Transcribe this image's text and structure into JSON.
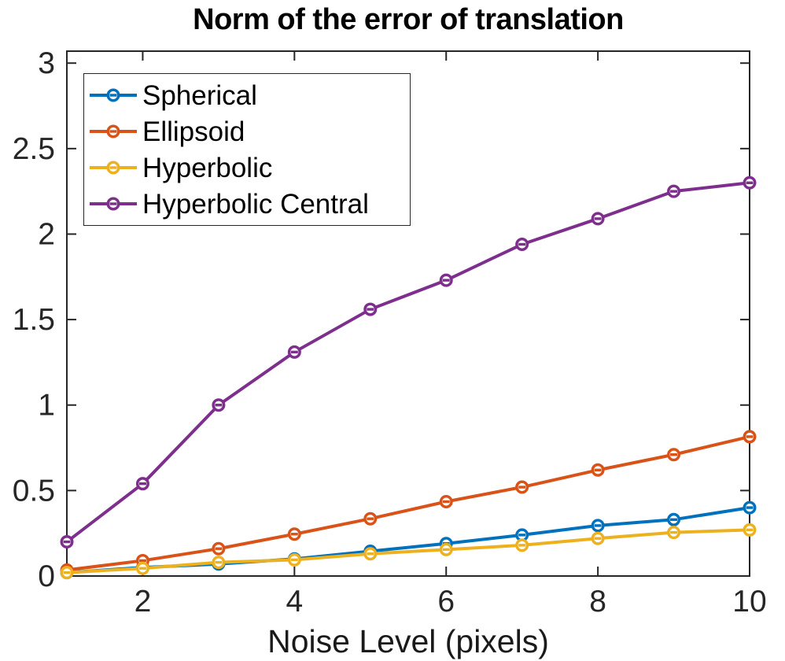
{
  "window": {
    "background": "#ffffff"
  },
  "palette": {
    "axis_color": "#262626",
    "tick_label_color": "#262626",
    "title_color": "#000000",
    "xlabel_color": "#1a1a1a",
    "legend_border": "#262626",
    "legend_background": "#ffffff"
  },
  "chart_data": {
    "type": "line",
    "title": "Norm of the error of translation",
    "xlabel": "Noise Level (pixels)",
    "ylabel": "",
    "x": [
      1,
      2,
      3,
      4,
      5,
      6,
      7,
      8,
      9,
      10
    ],
    "xlim": [
      1,
      10
    ],
    "ylim": [
      0,
      3.07
    ],
    "xticks": [
      2,
      4,
      6,
      8,
      10
    ],
    "xtick_labels": [
      "2",
      "4",
      "6",
      "8",
      "10"
    ],
    "yticks": [
      0,
      0.5,
      1,
      1.5,
      2,
      2.5,
      3
    ],
    "ytick_labels": [
      "0",
      "0.5",
      "1",
      "1.5",
      "2",
      "2.5",
      "3"
    ],
    "grid": false,
    "box": true,
    "marker": "o",
    "legend_position": "top-left",
    "series": [
      {
        "name": "Spherical",
        "color": "#0072BD",
        "values": [
          0.02,
          0.05,
          0.07,
          0.1,
          0.145,
          0.19,
          0.24,
          0.295,
          0.33,
          0.4
        ]
      },
      {
        "name": "Ellipsoid",
        "color": "#D95319",
        "values": [
          0.035,
          0.09,
          0.16,
          0.245,
          0.335,
          0.435,
          0.52,
          0.62,
          0.71,
          0.815
        ]
      },
      {
        "name": "Hyperbolic",
        "color": "#EDB120",
        "values": [
          0.02,
          0.045,
          0.08,
          0.095,
          0.13,
          0.155,
          0.18,
          0.22,
          0.255,
          0.27
        ]
      },
      {
        "name": "Hyperbolic Central",
        "color": "#7E2F8E",
        "values": [
          0.2,
          0.54,
          1.0,
          1.31,
          1.56,
          1.73,
          1.94,
          2.09,
          2.25,
          2.3
        ]
      }
    ]
  }
}
